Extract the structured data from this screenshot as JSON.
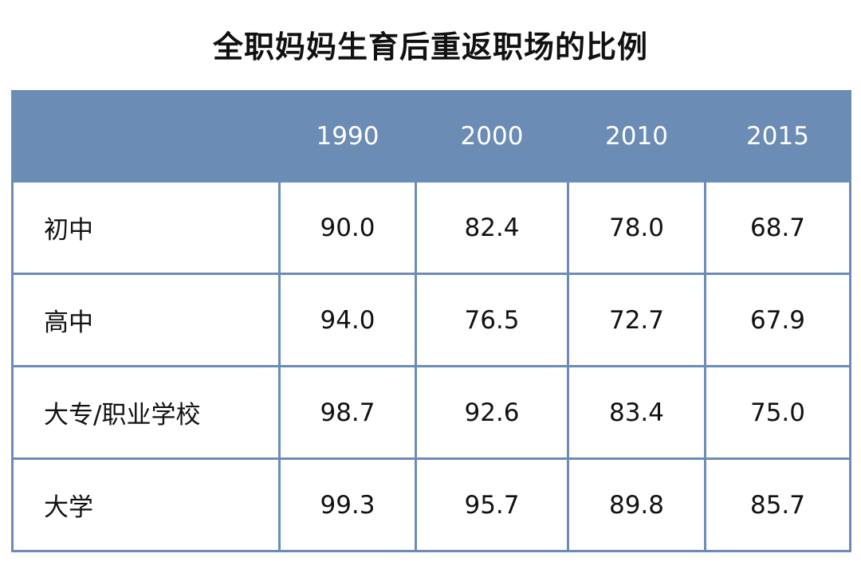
{
  "title": "全职妈妈生育后重返职场的比例",
  "chart_data": {
    "type": "table",
    "title": "全职妈妈生育后重返职场的比例",
    "columns": [
      "",
      "1990",
      "2000",
      "2010",
      "2015"
    ],
    "rows": [
      {
        "label": "初中",
        "values": [
          "90.0",
          "82.4",
          "78.0",
          "68.7"
        ]
      },
      {
        "label": "高中",
        "values": [
          "94.0",
          "76.5",
          "72.7",
          "67.9"
        ]
      },
      {
        "label": "大专/职业学校",
        "values": [
          "98.7",
          "92.6",
          "83.4",
          "75.0"
        ]
      },
      {
        "label": "大学",
        "values": [
          "99.3",
          "95.7",
          "89.8",
          "85.7"
        ]
      }
    ],
    "colors": {
      "header_background": "#6b8cb5",
      "header_text": "#ffffff",
      "border": "#6b8cb5"
    }
  }
}
